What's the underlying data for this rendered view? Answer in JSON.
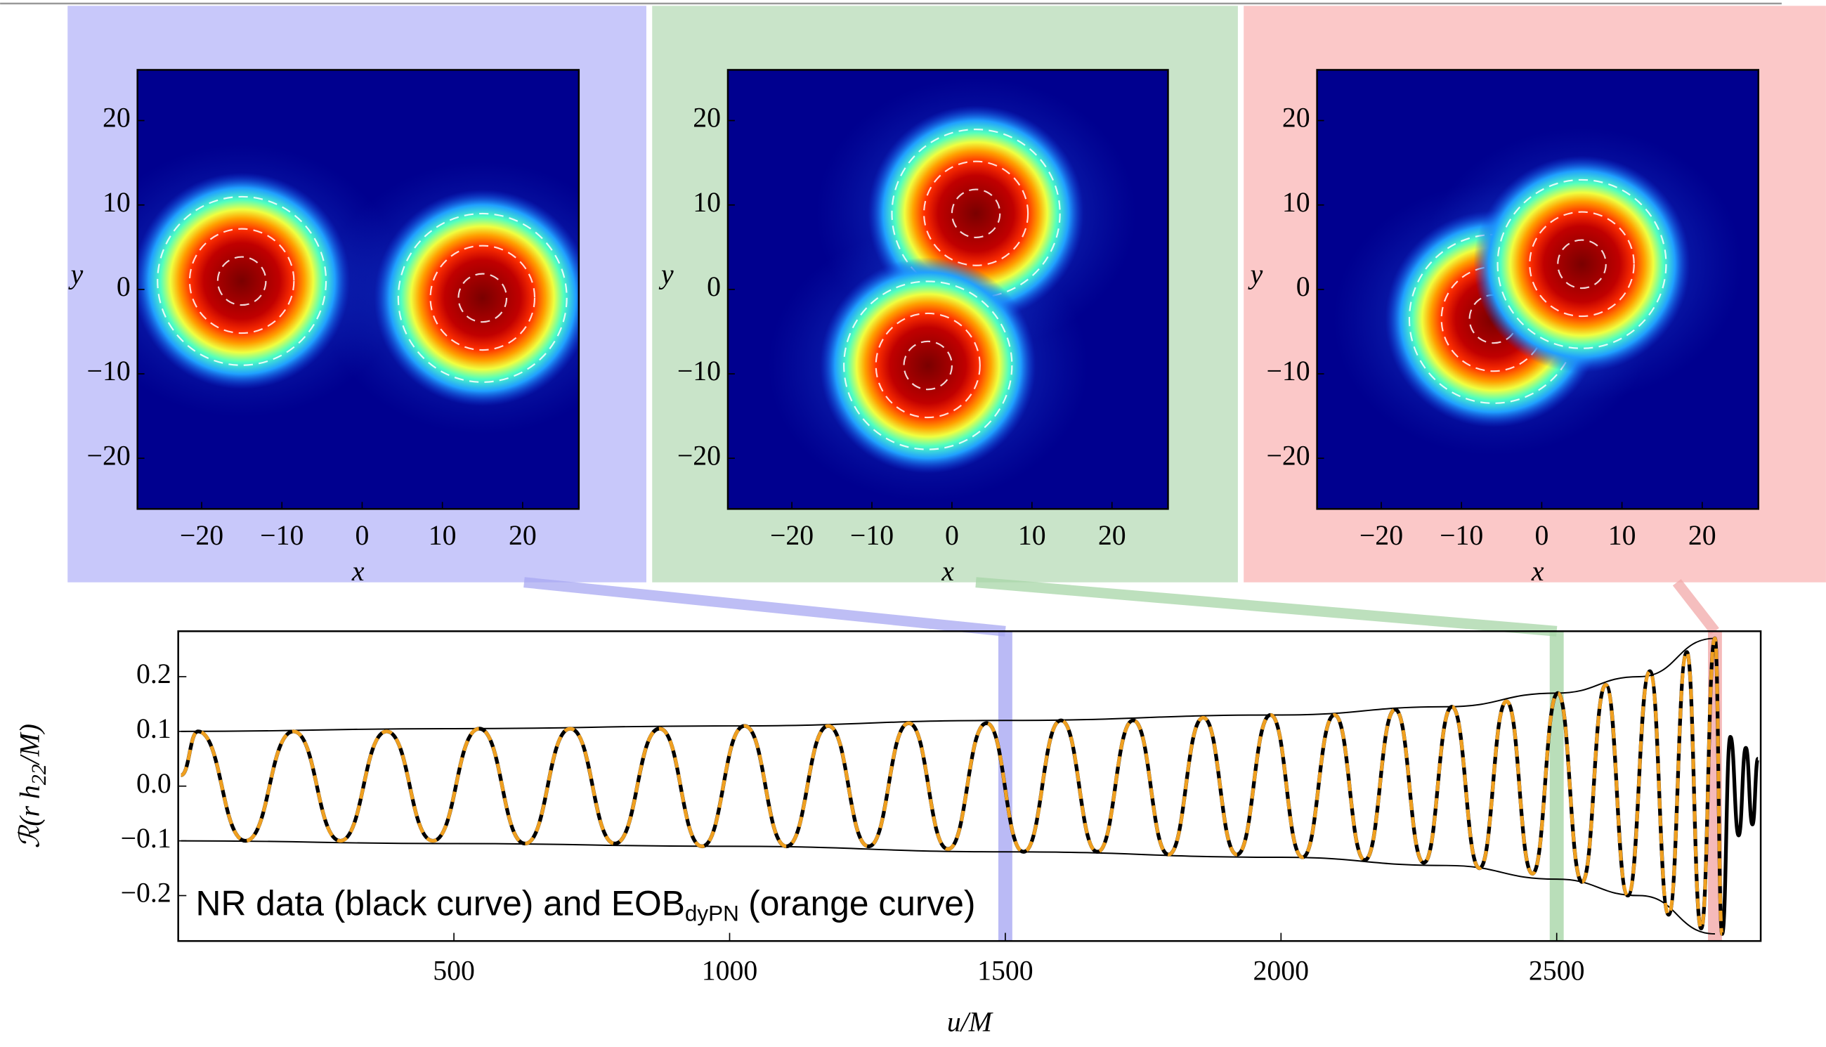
{
  "chart_data": [
    {
      "type": "heatmap",
      "xlabel": "x",
      "ylabel": "y",
      "background": "#c8c8fa",
      "xlim": [
        -28,
        27
      ],
      "ylim": [
        -26,
        26
      ],
      "xticks": [
        {
          "value": -20,
          "label": "−20"
        },
        {
          "value": -10,
          "label": "−10"
        },
        0,
        10,
        20
      ],
      "yticks": [
        {
          "value": -20,
          "label": "−20"
        },
        {
          "value": -10,
          "label": "−10"
        },
        0,
        10,
        20
      ],
      "sources": [
        {
          "x": -15,
          "y": 1
        },
        {
          "x": 15,
          "y": -1
        }
      ]
    },
    {
      "type": "heatmap",
      "xlabel": "x",
      "ylabel": "y",
      "background": "#c9e4c9",
      "xlim": [
        -28,
        27
      ],
      "ylim": [
        -26,
        26
      ],
      "xticks": [
        {
          "value": -20,
          "label": "−20"
        },
        {
          "value": -10,
          "label": "−10"
        },
        0,
        10,
        20
      ],
      "yticks": [
        {
          "value": -20,
          "label": "−20"
        },
        {
          "value": -10,
          "label": "−10"
        },
        0,
        10,
        20
      ],
      "sources": [
        {
          "x": 3,
          "y": 9
        },
        {
          "x": -3,
          "y": -9
        }
      ]
    },
    {
      "type": "heatmap",
      "xlabel": "x",
      "ylabel": "y",
      "background": "#fbc8c8",
      "xlim": [
        -28,
        27
      ],
      "ylim": [
        -26,
        26
      ],
      "xticks": [
        {
          "value": -20,
          "label": "−20"
        },
        {
          "value": -10,
          "label": "−10"
        },
        0,
        10,
        20
      ],
      "yticks": [
        {
          "value": -20,
          "label": "−20"
        },
        {
          "value": -10,
          "label": "−10"
        },
        0,
        10,
        20
      ],
      "sources": [
        {
          "x": -6,
          "y": -3.5
        },
        {
          "x": 5,
          "y": 3
        }
      ]
    },
    {
      "type": "line",
      "xlabel": "u/M",
      "ylabel": [
        "ℛ(r h",
        "22",
        "/M)"
      ],
      "annotation": [
        "NR data (black curve) and EOB",
        "dyPN",
        "(orange curve)"
      ],
      "xlim": [
        0,
        2870
      ],
      "ylim": [
        -0.283,
        0.283
      ],
      "xticks": [
        500,
        1000,
        1500,
        2000,
        2500
      ],
      "yticks": [
        {
          "value": -0.2,
          "label": "−0.2"
        },
        {
          "value": -0.1,
          "label": "−0.1"
        },
        {
          "value": 0,
          "label": "0.0"
        },
        0.1,
        0.2
      ],
      "bands": [
        {
          "x": 1500,
          "color": "#a9a9f2"
        },
        {
          "x": 2500,
          "color": "#a8d6a8"
        },
        {
          "x": 2787,
          "color": "#f2a9a9"
        }
      ],
      "envelopes": [
        {
          "color": "#000000",
          "x": [
            5,
            500,
            1000,
            1500,
            2000,
            2300,
            2500,
            2650,
            2787
          ],
          "values": [
            0.1,
            0.105,
            0.11,
            0.12,
            0.13,
            0.145,
            0.17,
            0.2,
            0.27
          ]
        },
        {
          "color": "#000000",
          "x": [
            5,
            500,
            1000,
            1500,
            2000,
            2300,
            2500,
            2650,
            2787
          ],
          "values": [
            -0.1,
            -0.105,
            -0.11,
            -0.12,
            -0.13,
            -0.145,
            -0.17,
            -0.2,
            -0.27
          ]
        }
      ],
      "series": [
        {
          "color": "#000000",
          "x": [
            5,
            36,
            122,
            209,
            294,
            378,
            462,
            546,
            629,
            711,
            792,
            873,
            950,
            1027,
            1103,
            1179,
            1252,
            1325,
            1396,
            1466,
            1533,
            1601,
            1667,
            1732,
            1796,
            1859,
            1920,
            1981,
            2039,
            2097,
            2152,
            2207,
            2259,
            2310,
            2360,
            2409,
            2456,
            2502,
            2546,
            2589,
            2629,
            2669,
            2703,
            2736,
            2762,
            2787,
            2800,
            2815,
            2830,
            2843,
            2855,
            2865
          ],
          "values": [
            0.02,
            0.1,
            -0.1,
            0.1,
            -0.1,
            0.1,
            -0.1,
            0.105,
            -0.105,
            0.105,
            -0.105,
            0.105,
            -0.11,
            0.11,
            -0.11,
            0.11,
            -0.11,
            0.115,
            -0.115,
            0.115,
            -0.12,
            0.12,
            -0.12,
            0.12,
            -0.125,
            0.125,
            -0.125,
            0.13,
            -0.13,
            0.13,
            -0.135,
            0.14,
            -0.14,
            0.145,
            -0.15,
            0.155,
            -0.16,
            0.17,
            -0.175,
            0.185,
            -0.2,
            0.21,
            -0.235,
            0.245,
            -0.26,
            0.27,
            -0.27,
            0.09,
            -0.09,
            0.07,
            -0.07,
            0.05
          ]
        },
        {
          "color": "#f0a020",
          "dashed": true,
          "x": [
            5,
            36,
            122,
            209,
            294,
            378,
            462,
            546,
            629,
            711,
            792,
            873,
            950,
            1027,
            1103,
            1179,
            1252,
            1325,
            1396,
            1466,
            1533,
            1601,
            1667,
            1732,
            1796,
            1859,
            1920,
            1981,
            2039,
            2097,
            2152,
            2207,
            2259,
            2310,
            2360,
            2409,
            2456,
            2502,
            2546,
            2589,
            2629,
            2669,
            2703,
            2736,
            2762,
            2787,
            2800
          ],
          "values": [
            0.02,
            0.1,
            -0.1,
            0.1,
            -0.1,
            0.1,
            -0.1,
            0.105,
            -0.105,
            0.105,
            -0.105,
            0.105,
            -0.11,
            0.11,
            -0.11,
            0.11,
            -0.11,
            0.115,
            -0.115,
            0.115,
            -0.12,
            0.12,
            -0.12,
            0.12,
            -0.125,
            0.125,
            -0.125,
            0.13,
            -0.13,
            0.13,
            -0.135,
            0.14,
            -0.14,
            0.145,
            -0.15,
            0.155,
            -0.16,
            0.17,
            -0.175,
            0.185,
            -0.2,
            0.21,
            -0.235,
            0.245,
            -0.26,
            0.27,
            -0.27
          ]
        }
      ]
    }
  ]
}
